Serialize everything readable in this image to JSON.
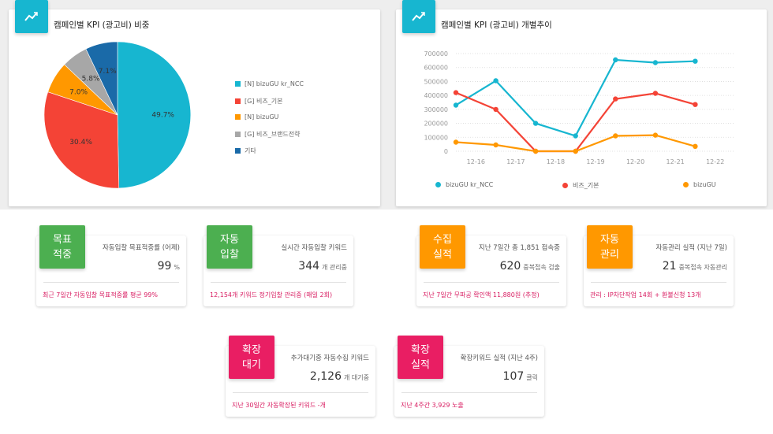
{
  "colors": {
    "cyan": "#17b6d0",
    "red": "#f44336",
    "orange": "#ff9800",
    "gray": "#a7a7a7",
    "blue": "#1a6aa8",
    "green": "#4caf50",
    "pink": "#e91e63"
  },
  "pie_panel": {
    "icon": "trend-line-icon",
    "title": "캠페인별 KPI (광고비) 비중",
    "legend": [
      "[N] bizuGU kr_NCC",
      "[G] 비즈_기본",
      "[N] bizuGU",
      "[G] 비즈_브랜드전략",
      "기타"
    ]
  },
  "line_panel": {
    "icon": "trend-line-icon",
    "title": "캠페인별 KPI (광고비) 개별추이",
    "legend": [
      "bizuGU kr_NCC",
      "비즈_기본",
      "bizuGU"
    ]
  },
  "chart_data": [
    {
      "type": "pie",
      "title": "캠페인별 KPI (광고비) 비중",
      "labels": [
        "[N] bizuGU kr_NCC",
        "[G] 비즈_기본",
        "[N] bizuGU",
        "[G] 비즈_브랜드전략",
        "기타"
      ],
      "values": [
        49.7,
        30.4,
        7.0,
        5.8,
        7.1
      ],
      "value_labels": [
        "49.7%",
        "30.4%",
        "7.0%",
        "5.8%",
        "7.1%"
      ],
      "colors": [
        "#17b6d0",
        "#f44336",
        "#ff9800",
        "#a7a7a7",
        "#1a6aa8"
      ],
      "legend_position": "right"
    },
    {
      "type": "line",
      "title": "캠페인별 KPI (광고비) 개별추이",
      "categories": [
        "12-16",
        "12-17",
        "12-18",
        "12-19",
        "12-20",
        "12-21",
        "12-22"
      ],
      "y_ticks": [
        0,
        100000,
        200000,
        300000,
        400000,
        500000,
        600000,
        700000
      ],
      "ylim": [
        0,
        700000
      ],
      "grid": true,
      "legend_position": "bottom",
      "series": [
        {
          "name": "bizuGU kr_NCC",
          "color": "#17b6d0",
          "x": [
            0,
            1,
            2,
            3,
            4,
            5,
            6
          ],
          "values": [
            330000,
            505000,
            200000,
            110000,
            655000,
            635000,
            645000
          ]
        },
        {
          "name": "비즈_기본",
          "color": "#f44336",
          "x": [
            0,
            1,
            2,
            3,
            4,
            5,
            6
          ],
          "values": [
            420000,
            300000,
            0,
            0,
            375000,
            415000,
            335000
          ]
        },
        {
          "name": "bizuGU",
          "color": "#ff9800",
          "x": [
            0,
            1,
            2,
            3,
            4,
            5,
            6
          ],
          "values": [
            65000,
            45000,
            0,
            0,
            110000,
            115000,
            35000
          ]
        }
      ]
    }
  ],
  "cards": [
    {
      "badge": [
        "목표",
        "적중"
      ],
      "label": "자동입찰 목표적중률 (어제)",
      "value": "99",
      "unit": "%",
      "foot": "최근 7일간 자동입찰 목표적중률 평균 99%"
    },
    {
      "badge": [
        "자동",
        "입찰"
      ],
      "label": "실시간 자동입찰 키워드",
      "value": "344",
      "unit": "개 관리중",
      "foot": "12,154개 키워드 정기입찰 관리중 (매일 2회)"
    },
    {
      "badge": [
        "수집",
        "실적"
      ],
      "label": "지난 7일간 총 1,851 접속중",
      "value": "620",
      "unit": "중복접속 검출",
      "foot": "지난 7일간 무파공 확인액 11,880원 (추정)"
    },
    {
      "badge": [
        "자동",
        "관리"
      ],
      "label": "자동관리 실적 (지난 7일)",
      "value": "21",
      "unit": "중복접속 자동관리",
      "foot": "관리 : IP차단작업 14회 + 환불신청 13개"
    },
    {
      "badge": [
        "확장",
        "대기"
      ],
      "label": "추가대기중 자동수집 키워드",
      "value": "2,126",
      "unit": "개 대기중",
      "foot": "지난 30일간 자동확장된 키워드 -개"
    },
    {
      "badge": [
        "확장",
        "실적"
      ],
      "label": "확장키워드 실적 (지난 4주)",
      "value": "107",
      "unit": "클릭",
      "foot": "지난 4주간 3,929 노출"
    }
  ]
}
